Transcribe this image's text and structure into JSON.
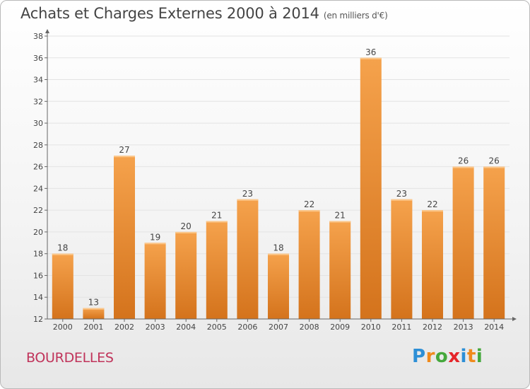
{
  "header": {
    "title": "Achats et Charges Externes 2000 à 2014",
    "unit": "(en milliers d'€)"
  },
  "footer": {
    "commune": "BOURDELLES",
    "logo_letters": [
      "P",
      "r",
      "o",
      "x",
      "i",
      "t",
      "i"
    ],
    "logo_colors": [
      "#2d8fd6",
      "#f08a1c",
      "#45a83c",
      "#e5252a",
      "#2d8fd6",
      "#f08a1c",
      "#45a83c"
    ]
  },
  "colors": {
    "bar_light": "#f5a24c",
    "bar_dark": "#d4731c",
    "axis": "#666666",
    "grid": "#e3e3e3",
    "commune": "#c0335a"
  },
  "chart_data": {
    "type": "bar",
    "categories": [
      "2000",
      "2001",
      "2002",
      "2003",
      "2004",
      "2005",
      "2006",
      "2007",
      "2008",
      "2009",
      "2010",
      "2011",
      "2012",
      "2013",
      "2014"
    ],
    "values": [
      18,
      13,
      27,
      19,
      20,
      21,
      23,
      18,
      22,
      21,
      36,
      23,
      22,
      26,
      26
    ],
    "ylim": [
      12,
      38
    ],
    "yticks": [
      12,
      14,
      16,
      18,
      20,
      22,
      24,
      26,
      28,
      30,
      32,
      34,
      36,
      38
    ],
    "grid": true,
    "data_labels": true
  }
}
